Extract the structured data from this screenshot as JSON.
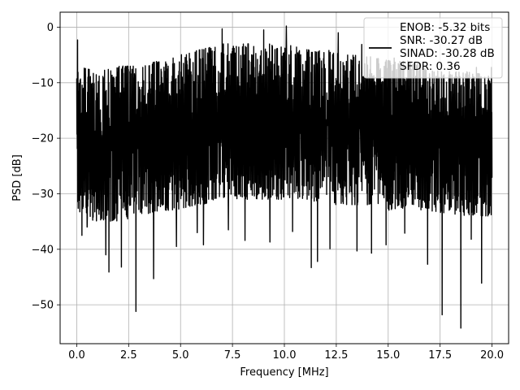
{
  "chart_data": {
    "type": "line",
    "title": "",
    "xlabel": "Frequency [MHz]",
    "ylabel": "PSD [dB]",
    "xlim": [
      -0.8,
      20.8
    ],
    "ylim": [
      -57,
      2.7
    ],
    "xticks": [
      0.0,
      2.5,
      5.0,
      7.5,
      10.0,
      12.5,
      15.0,
      17.5,
      20.0
    ],
    "xtick_labels": [
      "0.0",
      "2.5",
      "5.0",
      "7.5",
      "10.0",
      "12.5",
      "15.0",
      "17.5",
      "20.0"
    ],
    "yticks": [
      0,
      -10,
      -20,
      -30,
      -40,
      -50
    ],
    "ytick_labels": [
      "0",
      "−10",
      "−20",
      "−30",
      "−40",
      "−50"
    ],
    "grid": true,
    "legend_position": "top-right",
    "legend_lines": [
      "ENOB: -5.32 bits",
      "SNR: -30.27 dB",
      "SINAD: -30.28 dB",
      "SFDR: 0.36"
    ],
    "series": [
      {
        "color": "#000000",
        "x_range": [
          0,
          20
        ],
        "n_points": 2000,
        "envelope_x": [
          0,
          1,
          2,
          3,
          4,
          5,
          6,
          7,
          8,
          9,
          10,
          11,
          12,
          13,
          14,
          15,
          16,
          17,
          18,
          19,
          20
        ],
        "upper_y": [
          -7,
          -8,
          -7,
          -7,
          -6,
          -5,
          -4,
          -3,
          -3,
          -3,
          -3,
          -4,
          -4,
          -5,
          -5,
          -6,
          -6,
          -7,
          -8,
          -8,
          -9
        ],
        "lower_y": [
          -34,
          -35,
          -35,
          -34,
          -33,
          -33,
          -32,
          -31,
          -31,
          -31,
          -31,
          -31,
          -32,
          -32,
          -32,
          -33,
          -33,
          -33,
          -34,
          -34,
          -34
        ],
        "peaks": [
          [
            0.04,
            -2.3
          ],
          [
            10.1,
            0.2
          ],
          [
            7.0,
            -0.3
          ],
          [
            12.6,
            -1.0
          ],
          [
            9.0,
            -0.5
          ]
        ],
        "dips": [
          [
            2.85,
            -51.2
          ],
          [
            18.5,
            -54.2
          ],
          [
            17.6,
            -51.8
          ],
          [
            3.7,
            -45.3
          ],
          [
            19.5,
            -46.1
          ],
          [
            1.55,
            -44.1
          ],
          [
            2.15,
            -43.2
          ],
          [
            11.3,
            -43.3
          ],
          [
            16.9,
            -42.7
          ],
          [
            13.5,
            -40.3
          ],
          [
            14.2,
            -40.7
          ],
          [
            4.8,
            -39.5
          ],
          [
            6.1,
            -39.2
          ],
          [
            8.1,
            -38.4
          ],
          [
            9.3,
            -38.7
          ],
          [
            0.25,
            -37.5
          ],
          [
            0.5,
            -36.0
          ],
          [
            1.4,
            -41.0
          ],
          [
            11.6,
            -42.2
          ],
          [
            12.2,
            -39.9
          ],
          [
            14.9,
            -39.2
          ],
          [
            15.8,
            -37.1
          ],
          [
            19.0,
            -38.2
          ],
          [
            5.8,
            -37.0
          ],
          [
            7.3,
            -36.5
          ],
          [
            10.4,
            -36.8
          ]
        ]
      }
    ]
  }
}
